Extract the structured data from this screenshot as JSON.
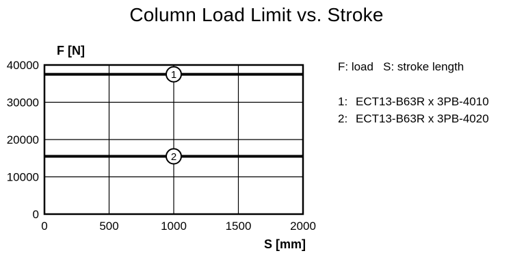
{
  "chart_data": {
    "type": "line",
    "title": "Column Load Limit vs. Stroke",
    "xlabel": "S [mm]",
    "ylabel": "F [N]",
    "xlim": [
      0,
      2000
    ],
    "ylim": [
      0,
      40000
    ],
    "x_ticks": [
      0,
      500,
      1000,
      1500,
      2000
    ],
    "y_ticks": [
      0,
      10000,
      20000,
      30000,
      40000
    ],
    "grid": true,
    "legend_position": "right",
    "legend_note": "F: load   S: stroke length",
    "series": [
      {
        "legend_prefix": "1:",
        "name": "ECT13-B63R x 3PB-4010",
        "x": [
          0,
          2000
        ],
        "y": [
          37500,
          37500
        ],
        "marker": {
          "x": 1000,
          "label": "1"
        },
        "color": "#000000"
      },
      {
        "legend_prefix": "2:",
        "name": "ECT13-B63R x 3PB-4020",
        "x": [
          0,
          2000
        ],
        "y": [
          15500,
          15500
        ],
        "marker": {
          "x": 1000,
          "label": "2"
        },
        "color": "#000000"
      }
    ]
  }
}
